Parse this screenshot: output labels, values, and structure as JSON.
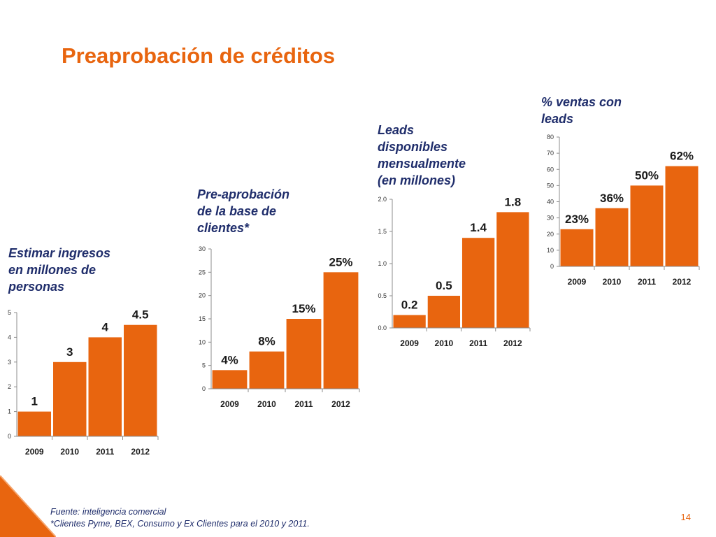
{
  "slide": {
    "title": "Preaprobación de créditos",
    "page_number": "14",
    "footer": {
      "source": "Fuente: inteligencia comercial",
      "note": "*Clientes Pyme, BEX, Consumo y Ex Clientes  para el 2010 y 2011."
    },
    "accent_color": "#E8650F",
    "text_color": "#1F2D6B"
  },
  "chart_data": [
    {
      "type": "bar",
      "title_lines": [
        "Estimar ingresos",
        "en millones de",
        "personas"
      ],
      "categories": [
        "2009",
        "2010",
        "2011",
        "2012"
      ],
      "values": [
        1,
        3,
        4,
        4.5
      ],
      "data_labels": [
        "1",
        "3",
        "4",
        "4.5"
      ],
      "ylim": [
        0,
        5
      ],
      "yticks": [
        "0",
        "1",
        "2",
        "3",
        "4",
        "5"
      ],
      "color": "#E8650F",
      "grid": false
    },
    {
      "type": "bar",
      "title_lines": [
        "Pre-aprobación",
        "de la base de",
        "clientes*"
      ],
      "categories": [
        "2009",
        "2010",
        "2011",
        "2012"
      ],
      "values": [
        4,
        8,
        15,
        25
      ],
      "data_labels": [
        "4%",
        "8%",
        "15%",
        "25%"
      ],
      "ylim": [
        0,
        30
      ],
      "yticks": [
        "0",
        "5",
        "10",
        "15",
        "20",
        "25",
        "30"
      ],
      "color": "#E8650F",
      "grid": false
    },
    {
      "type": "bar",
      "title_lines": [
        "Leads",
        "disponibles",
        "mensualmente",
        "(en millones)"
      ],
      "categories": [
        "2009",
        "2010",
        "2011",
        "2012"
      ],
      "values": [
        0.2,
        0.5,
        1.4,
        1.8
      ],
      "data_labels": [
        "0.2",
        "0.5",
        "1.4",
        "1.8"
      ],
      "ylim": [
        0,
        2
      ],
      "yticks": [
        "0.0",
        "0.5",
        "1.0",
        "1.5",
        "2.0"
      ],
      "color": "#E8650F",
      "grid": false
    },
    {
      "type": "bar",
      "title_lines": [
        "% ventas con",
        "leads"
      ],
      "categories": [
        "2009",
        "2010",
        "2011",
        "2012"
      ],
      "values": [
        23,
        36,
        50,
        62
      ],
      "data_labels": [
        "23%",
        "36%",
        "50%",
        "62%"
      ],
      "ylim": [
        0,
        80
      ],
      "yticks": [
        "0",
        "10",
        "20",
        "30",
        "40",
        "50",
        "60",
        "70",
        "80"
      ],
      "color": "#E8650F",
      "grid": false
    }
  ]
}
